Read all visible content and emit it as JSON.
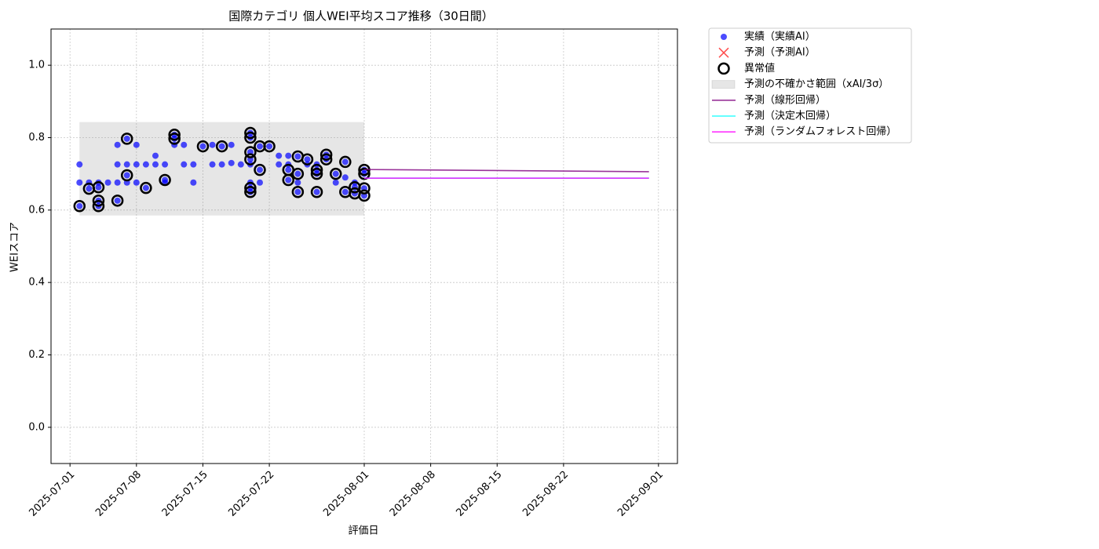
{
  "chart_data": {
    "type": "scatter",
    "title": "国際カテゴリ 個人WEI平均スコア推移（30日間）",
    "xlabel": "評価日",
    "ylabel": "WEIスコア",
    "xlim": [
      "2025-06-29",
      "2025-09-03"
    ],
    "ylim": [
      -0.1,
      1.1
    ],
    "xticks": [
      "2025-07-01",
      "2025-07-08",
      "2025-07-15",
      "2025-07-22",
      "2025-08-01",
      "2025-08-08",
      "2025-08-15",
      "2025-08-22",
      "2025-09-01"
    ],
    "yticks": [
      {
        "value": 0,
        "label": "0.0"
      },
      0.2,
      0.4,
      0.6,
      0.8,
      {
        "value": 1,
        "label": "1.0"
      }
    ],
    "grid": true,
    "legend": "outside-upper-left",
    "series": [
      {
        "name": "予測の不確かさ範囲（xAI/3σ）",
        "type": "band",
        "color": "#808080",
        "alpha": 0.2,
        "x": [
          "2025-07-02",
          "2025-08-01"
        ],
        "lower": [
          0.585,
          0.585
        ],
        "upper": [
          0.843,
          0.843
        ]
      },
      {
        "name": "実績（実績AI）",
        "type": "scatter",
        "marker": "o",
        "color": "#0000ff",
        "alpha": 0.7,
        "x": [
          "2025-07-02",
          "2025-07-02",
          "2025-07-02",
          "2025-07-03",
          "2025-07-03",
          "2025-07-04",
          "2025-07-04",
          "2025-07-04",
          "2025-07-04",
          "2025-07-05",
          "2025-07-06",
          "2025-07-06",
          "2025-07-06",
          "2025-07-06",
          "2025-07-07",
          "2025-07-07",
          "2025-07-07",
          "2025-07-07",
          "2025-07-08",
          "2025-07-08",
          "2025-07-08",
          "2025-07-09",
          "2025-07-09",
          "2025-07-10",
          "2025-07-10",
          "2025-07-11",
          "2025-07-11",
          "2025-07-11",
          "2025-07-12",
          "2025-07-12",
          "2025-07-12",
          "2025-07-13",
          "2025-07-13",
          "2025-07-14",
          "2025-07-14",
          "2025-07-15",
          "2025-07-16",
          "2025-07-16",
          "2025-07-17",
          "2025-07-17",
          "2025-07-18",
          "2025-07-18",
          "2025-07-19",
          "2025-07-20",
          "2025-07-20",
          "2025-07-20",
          "2025-07-20",
          "2025-07-20",
          "2025-07-20",
          "2025-07-20",
          "2025-07-20",
          "2025-07-21",
          "2025-07-21",
          "2025-07-21",
          "2025-07-22",
          "2025-07-23",
          "2025-07-23",
          "2025-07-24",
          "2025-07-24",
          "2025-07-24",
          "2025-07-24",
          "2025-07-25",
          "2025-07-25",
          "2025-07-25",
          "2025-07-25",
          "2025-07-26",
          "2025-07-26",
          "2025-07-27",
          "2025-07-27",
          "2025-07-27",
          "2025-07-27",
          "2025-07-28",
          "2025-07-28",
          "2025-07-29",
          "2025-07-29",
          "2025-07-30",
          "2025-07-30",
          "2025-07-30",
          "2025-07-31",
          "2025-07-31",
          "2025-07-31",
          "2025-08-01",
          "2025-08-01",
          "2025-08-01",
          "2025-08-01"
        ],
        "values": [
          0.726,
          0.676,
          0.611,
          0.659,
          0.676,
          0.676,
          0.626,
          0.663,
          0.611,
          0.676,
          0.676,
          0.726,
          0.78,
          0.626,
          0.797,
          0.726,
          0.696,
          0.676,
          0.726,
          0.78,
          0.676,
          0.726,
          0.661,
          0.726,
          0.75,
          0.726,
          0.676,
          0.683,
          0.808,
          0.797,
          0.78,
          0.78,
          0.726,
          0.726,
          0.676,
          0.776,
          0.78,
          0.726,
          0.776,
          0.726,
          0.78,
          0.73,
          0.726,
          0.813,
          0.8,
          0.76,
          0.74,
          0.726,
          0.676,
          0.661,
          0.65,
          0.776,
          0.711,
          0.676,
          0.776,
          0.75,
          0.726,
          0.75,
          0.711,
          0.683,
          0.726,
          0.748,
          0.7,
          0.65,
          0.676,
          0.74,
          0.726,
          0.7,
          0.711,
          0.65,
          0.726,
          0.753,
          0.74,
          0.7,
          0.676,
          0.733,
          0.65,
          0.69,
          0.676,
          0.663,
          0.646,
          0.711,
          0.7,
          0.66,
          0.64
        ]
      },
      {
        "name": "予測（予測AI）",
        "type": "scatter",
        "marker": "x",
        "color": "#ff0000",
        "alpha": 0.7,
        "x": [],
        "values": []
      },
      {
        "name": "異常値",
        "type": "scatter",
        "marker": "ring",
        "color": "#000000",
        "alpha": 1,
        "x": [
          "2025-07-02",
          "2025-07-03",
          "2025-07-04",
          "2025-07-04",
          "2025-07-04",
          "2025-07-06",
          "2025-07-07",
          "2025-07-07",
          "2025-07-09",
          "2025-07-11",
          "2025-07-12",
          "2025-07-12",
          "2025-07-15",
          "2025-07-17",
          "2025-07-20",
          "2025-07-20",
          "2025-07-20",
          "2025-07-20",
          "2025-07-20",
          "2025-07-20",
          "2025-07-21",
          "2025-07-21",
          "2025-07-22",
          "2025-07-24",
          "2025-07-24",
          "2025-07-25",
          "2025-07-25",
          "2025-07-25",
          "2025-07-26",
          "2025-07-27",
          "2025-07-27",
          "2025-07-27",
          "2025-07-28",
          "2025-07-28",
          "2025-07-29",
          "2025-07-30",
          "2025-07-30",
          "2025-07-31",
          "2025-07-31",
          "2025-08-01",
          "2025-08-01",
          "2025-08-01",
          "2025-08-01"
        ],
        "values": [
          0.611,
          0.659,
          0.626,
          0.663,
          0.611,
          0.626,
          0.797,
          0.696,
          0.661,
          0.683,
          0.808,
          0.797,
          0.776,
          0.776,
          0.813,
          0.8,
          0.76,
          0.74,
          0.661,
          0.65,
          0.776,
          0.711,
          0.776,
          0.711,
          0.683,
          0.748,
          0.7,
          0.65,
          0.74,
          0.7,
          0.711,
          0.65,
          0.753,
          0.74,
          0.7,
          0.733,
          0.65,
          0.663,
          0.646,
          0.711,
          0.7,
          0.66,
          0.64
        ]
      },
      {
        "name": "予測（線形回帰）",
        "type": "line",
        "color": "#800080",
        "alpha": 0.8,
        "x": [
          "2025-08-01",
          "2025-08-31"
        ],
        "values": [
          0.712,
          0.706
        ]
      },
      {
        "name": "予測（決定木回帰）",
        "type": "line",
        "color": "#00ffff",
        "alpha": 0.8,
        "x": [
          "2025-08-01",
          "2025-08-31"
        ],
        "values": [
          0.688,
          0.688
        ]
      },
      {
        "name": "予測（ランダムフォレスト回帰）",
        "type": "line",
        "color": "#ff00ff",
        "alpha": 0.8,
        "x": [
          "2025-08-01",
          "2025-08-31"
        ],
        "values": [
          0.688,
          0.688
        ]
      }
    ]
  }
}
